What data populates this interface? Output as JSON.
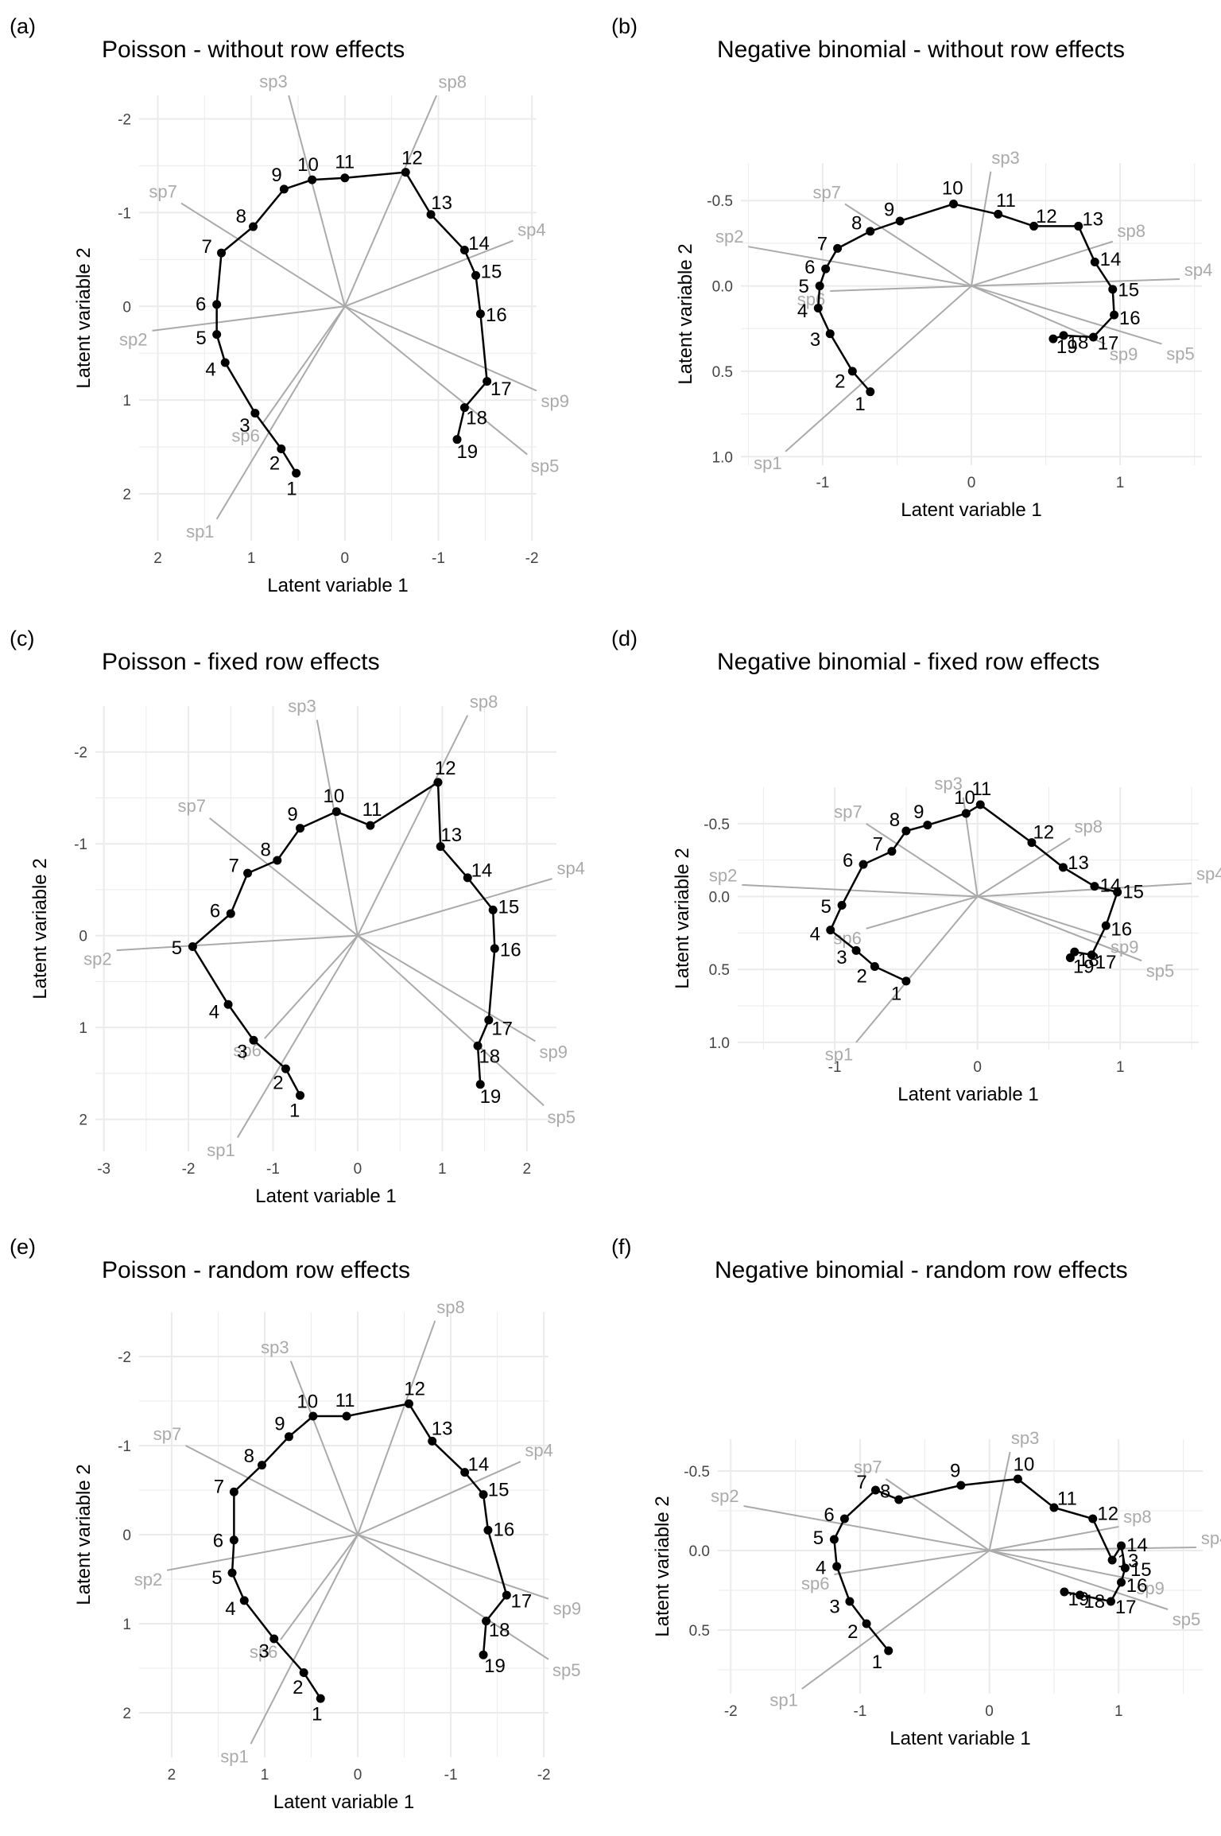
{
  "figure": {
    "label": "six-panel latent variable ordination figure"
  },
  "chart_data": [
    {
      "type": "scatter",
      "panel_label": "(a)",
      "title": "Poisson - without row effects",
      "xlabel": "Latent variable 1",
      "ylabel": "Latent variable 2",
      "xlim": [
        2.2,
        -2.05
      ],
      "ylim": [
        -2.25,
        2.5
      ],
      "x_reversed": true,
      "y_reversed": true,
      "xticks": [
        2,
        1,
        0,
        -1,
        -2
      ],
      "xtick_labels": [
        "2",
        "1",
        "0",
        "-1",
        "-2"
      ],
      "yticks": [
        -2,
        -1,
        0,
        1,
        2
      ],
      "ytick_labels": [
        "-2",
        "-1",
        "0",
        "1",
        "2"
      ],
      "grid": true,
      "sites": [
        {
          "label": "1",
          "x": 0.52,
          "y": 1.78
        },
        {
          "label": "2",
          "x": 0.68,
          "y": 1.52
        },
        {
          "label": "3",
          "x": 0.96,
          "y": 1.14
        },
        {
          "label": "4",
          "x": 1.28,
          "y": 0.6
        },
        {
          "label": "5",
          "x": 1.37,
          "y": 0.3
        },
        {
          "label": "6",
          "x": 1.37,
          "y": -0.02
        },
        {
          "label": "7",
          "x": 1.32,
          "y": -0.57
        },
        {
          "label": "8",
          "x": 0.98,
          "y": -0.85
        },
        {
          "label": "9",
          "x": 0.65,
          "y": -1.25
        },
        {
          "label": "10",
          "x": 0.35,
          "y": -1.35
        },
        {
          "label": "11",
          "x": 0.0,
          "y": -1.37
        },
        {
          "label": "12",
          "x": -0.65,
          "y": -1.43
        },
        {
          "label": "13",
          "x": -0.92,
          "y": -0.98
        },
        {
          "label": "14",
          "x": -1.28,
          "y": -0.6
        },
        {
          "label": "15",
          "x": -1.4,
          "y": -0.33
        },
        {
          "label": "16",
          "x": -1.45,
          "y": 0.08
        },
        {
          "label": "17",
          "x": -1.52,
          "y": 0.8
        },
        {
          "label": "18",
          "x": -1.28,
          "y": 1.08
        },
        {
          "label": "19",
          "x": -1.2,
          "y": 1.42
        }
      ],
      "species": [
        {
          "label": "sp1",
          "x": 1.37,
          "y": 2.27
        },
        {
          "label": "sp2",
          "x": 2.06,
          "y": 0.26
        },
        {
          "label": "sp3",
          "x": 0.6,
          "y": -2.25
        },
        {
          "label": "sp4",
          "x": -1.8,
          "y": -0.7
        },
        {
          "label": "sp5",
          "x": -1.95,
          "y": 1.58
        },
        {
          "label": "sp6",
          "x": 0.88,
          "y": 1.25
        },
        {
          "label": "sp7",
          "x": 1.75,
          "y": -1.1
        },
        {
          "label": "sp8",
          "x": -0.98,
          "y": -2.25
        },
        {
          "label": "sp9",
          "x": -2.05,
          "y": 0.9
        }
      ]
    },
    {
      "type": "scatter",
      "panel_label": "(b)",
      "title": "Negative binomial - without row effects",
      "xlabel": "Latent variable 1",
      "ylabel": "Latent variable 2",
      "xlim": [
        -1.55,
        1.55
      ],
      "ylim": [
        -0.72,
        1.05
      ],
      "x_reversed": false,
      "y_reversed": true,
      "xticks": [
        -1,
        0,
        1
      ],
      "xtick_labels": [
        "-1",
        "0",
        "1"
      ],
      "yticks": [
        -0.5,
        0.0,
        0.5,
        1.0
      ],
      "ytick_labels": [
        "-0.5",
        "0.0",
        "0.5",
        "1.0"
      ],
      "grid": true,
      "sites": [
        {
          "label": "1",
          "x": -0.68,
          "y": 0.62
        },
        {
          "label": "2",
          "x": -0.8,
          "y": 0.5
        },
        {
          "label": "3",
          "x": -0.95,
          "y": 0.28
        },
        {
          "label": "4",
          "x": -1.03,
          "y": 0.13
        },
        {
          "label": "5",
          "x": -1.02,
          "y": 0.0
        },
        {
          "label": "6",
          "x": -0.98,
          "y": -0.1
        },
        {
          "label": "7",
          "x": -0.9,
          "y": -0.22
        },
        {
          "label": "8",
          "x": -0.68,
          "y": -0.32
        },
        {
          "label": "9",
          "x": -0.48,
          "y": -0.38
        },
        {
          "label": "10",
          "x": -0.12,
          "y": -0.48
        },
        {
          "label": "11",
          "x": 0.18,
          "y": -0.42
        },
        {
          "label": "12",
          "x": 0.42,
          "y": -0.35
        },
        {
          "label": "13",
          "x": 0.72,
          "y": -0.35
        },
        {
          "label": "14",
          "x": 0.83,
          "y": -0.14
        },
        {
          "label": "15",
          "x": 0.95,
          "y": 0.02
        },
        {
          "label": "16",
          "x": 0.96,
          "y": 0.17
        },
        {
          "label": "17",
          "x": 0.82,
          "y": 0.3
        },
        {
          "label": "18",
          "x": 0.62,
          "y": 0.29
        },
        {
          "label": "19",
          "x": 0.55,
          "y": 0.31
        }
      ],
      "species": [
        {
          "label": "sp1",
          "x": -1.25,
          "y": 0.97
        },
        {
          "label": "sp2",
          "x": -1.5,
          "y": -0.23
        },
        {
          "label": "sp3",
          "x": 0.13,
          "y": -0.67
        },
        {
          "label": "sp4",
          "x": 1.4,
          "y": -0.04
        },
        {
          "label": "sp5",
          "x": 1.28,
          "y": 0.34
        },
        {
          "label": "sp6",
          "x": -0.95,
          "y": 0.03
        },
        {
          "label": "sp7",
          "x": -0.85,
          "y": -0.48
        },
        {
          "label": "sp8",
          "x": 0.95,
          "y": -0.26
        },
        {
          "label": "sp9",
          "x": 0.9,
          "y": 0.34
        }
      ]
    },
    {
      "type": "scatter",
      "panel_label": "(c)",
      "title": "Poisson - fixed row effects",
      "xlabel": "Latent variable 1",
      "ylabel": "Latent variable 2",
      "xlim": [
        -3.1,
        2.35
      ],
      "ylim": [
        -2.5,
        2.35
      ],
      "x_reversed": false,
      "y_reversed": true,
      "xticks": [
        -3,
        -2,
        -1,
        0,
        1,
        2
      ],
      "xtick_labels": [
        "-3",
        "-2",
        "-1",
        "0",
        "1",
        "2"
      ],
      "yticks": [
        -2,
        -1,
        0,
        1,
        2
      ],
      "ytick_labels": [
        "-2",
        "-1",
        "0",
        "1",
        "2"
      ],
      "grid": true,
      "sites": [
        {
          "label": "1",
          "x": -0.68,
          "y": 1.74
        },
        {
          "label": "2",
          "x": -0.85,
          "y": 1.45
        },
        {
          "label": "3",
          "x": -1.23,
          "y": 1.14
        },
        {
          "label": "4",
          "x": -1.53,
          "y": 0.75
        },
        {
          "label": "5",
          "x": -1.95,
          "y": 0.12
        },
        {
          "label": "6",
          "x": -1.5,
          "y": -0.24
        },
        {
          "label": "7",
          "x": -1.3,
          "y": -0.68
        },
        {
          "label": "8",
          "x": -0.95,
          "y": -0.82
        },
        {
          "label": "9",
          "x": -0.68,
          "y": -1.17
        },
        {
          "label": "10",
          "x": -0.25,
          "y": -1.35
        },
        {
          "label": "11",
          "x": 0.15,
          "y": -1.2
        },
        {
          "label": "12",
          "x": 0.95,
          "y": -1.67
        },
        {
          "label": "13",
          "x": 0.98,
          "y": -0.97
        },
        {
          "label": "14",
          "x": 1.3,
          "y": -0.63
        },
        {
          "label": "15",
          "x": 1.6,
          "y": -0.28
        },
        {
          "label": "16",
          "x": 1.62,
          "y": 0.14
        },
        {
          "label": "17",
          "x": 1.55,
          "y": 0.92
        },
        {
          "label": "18",
          "x": 1.42,
          "y": 1.2
        },
        {
          "label": "19",
          "x": 1.45,
          "y": 1.62
        }
      ],
      "species": [
        {
          "label": "sp1",
          "x": -1.42,
          "y": 2.2
        },
        {
          "label": "sp2",
          "x": -2.85,
          "y": 0.16
        },
        {
          "label": "sp3",
          "x": -0.48,
          "y": -2.35
        },
        {
          "label": "sp4",
          "x": 2.3,
          "y": -0.62
        },
        {
          "label": "sp5",
          "x": 2.2,
          "y": 1.85
        },
        {
          "label": "sp6",
          "x": -1.1,
          "y": 1.12
        },
        {
          "label": "sp7",
          "x": -1.75,
          "y": -1.28
        },
        {
          "label": "sp8",
          "x": 1.3,
          "y": -2.4
        },
        {
          "label": "sp9",
          "x": 2.1,
          "y": 1.15
        }
      ]
    },
    {
      "type": "scatter",
      "panel_label": "(d)",
      "title": "Negative binomial - fixed row effects",
      "xlabel": "Latent variable 1",
      "ylabel": "Latent variable 2",
      "xlim": [
        -1.68,
        1.55
      ],
      "ylim": [
        -0.75,
        1.05
      ],
      "x_reversed": false,
      "y_reversed": true,
      "xticks": [
        -1,
        0,
        1
      ],
      "xtick_labels": [
        "-1",
        "0",
        "1"
      ],
      "yticks": [
        -0.5,
        0.0,
        0.5,
        1.0
      ],
      "ytick_labels": [
        "-0.5",
        "0.0",
        "0.5",
        "1.0"
      ],
      "grid": true,
      "sites": [
        {
          "label": "1",
          "x": -0.5,
          "y": 0.58
        },
        {
          "label": "2",
          "x": -0.72,
          "y": 0.48
        },
        {
          "label": "3",
          "x": -0.85,
          "y": 0.37
        },
        {
          "label": "4",
          "x": -1.03,
          "y": 0.23
        },
        {
          "label": "5",
          "x": -0.95,
          "y": 0.06
        },
        {
          "label": "6",
          "x": -0.8,
          "y": -0.22
        },
        {
          "label": "7",
          "x": -0.6,
          "y": -0.31
        },
        {
          "label": "8",
          "x": -0.5,
          "y": -0.45
        },
        {
          "label": "9",
          "x": -0.35,
          "y": -0.49
        },
        {
          "label": "10",
          "x": -0.08,
          "y": -0.57
        },
        {
          "label": "11",
          "x": 0.02,
          "y": -0.63
        },
        {
          "label": "12",
          "x": 0.38,
          "y": -0.37
        },
        {
          "label": "13",
          "x": 0.6,
          "y": -0.2
        },
        {
          "label": "14",
          "x": 0.82,
          "y": -0.07
        },
        {
          "label": "15",
          "x": 0.98,
          "y": -0.03
        },
        {
          "label": "16",
          "x": 0.9,
          "y": 0.2
        },
        {
          "label": "17",
          "x": 0.8,
          "y": 0.4
        },
        {
          "label": "18",
          "x": 0.68,
          "y": 0.38
        },
        {
          "label": "19",
          "x": 0.65,
          "y": 0.42
        }
      ],
      "species": [
        {
          "label": "sp1",
          "x": -0.85,
          "y": 1.0
        },
        {
          "label": "sp2",
          "x": -1.65,
          "y": -0.08
        },
        {
          "label": "sp3",
          "x": -0.1,
          "y": -0.68
        },
        {
          "label": "sp4",
          "x": 1.5,
          "y": -0.09
        },
        {
          "label": "sp5",
          "x": 1.15,
          "y": 0.44
        },
        {
          "label": "sp6",
          "x": -0.78,
          "y": 0.22
        },
        {
          "label": "sp7",
          "x": -0.78,
          "y": -0.5
        },
        {
          "label": "sp8",
          "x": 0.65,
          "y": -0.4
        },
        {
          "label": "sp9",
          "x": 0.9,
          "y": 0.28
        }
      ]
    },
    {
      "type": "scatter",
      "panel_label": "(e)",
      "title": "Poisson - random row effects",
      "xlabel": "Latent variable 1",
      "ylabel": "Latent variable 2",
      "xlim": [
        2.35,
        -2.05
      ],
      "ylim": [
        -2.5,
        2.5
      ],
      "x_reversed": true,
      "y_reversed": true,
      "xticks": [
        2,
        1,
        0,
        -1,
        -2
      ],
      "xtick_labels": [
        "2",
        "1",
        "0",
        "-1",
        "-2"
      ],
      "yticks": [
        -2,
        -1,
        0,
        1,
        2
      ],
      "ytick_labels": [
        "-2",
        "-1",
        "0",
        "1",
        "2"
      ],
      "grid": true,
      "sites": [
        {
          "label": "1",
          "x": 0.4,
          "y": 1.84
        },
        {
          "label": "2",
          "x": 0.58,
          "y": 1.55
        },
        {
          "label": "3",
          "x": 0.9,
          "y": 1.17
        },
        {
          "label": "4",
          "x": 1.22,
          "y": 0.74
        },
        {
          "label": "5",
          "x": 1.35,
          "y": 0.43
        },
        {
          "label": "6",
          "x": 1.33,
          "y": 0.06
        },
        {
          "label": "7",
          "x": 1.33,
          "y": -0.48
        },
        {
          "label": "8",
          "x": 1.03,
          "y": -0.78
        },
        {
          "label": "9",
          "x": 0.74,
          "y": -1.1
        },
        {
          "label": "10",
          "x": 0.48,
          "y": -1.33
        },
        {
          "label": "11",
          "x": 0.12,
          "y": -1.33
        },
        {
          "label": "12",
          "x": -0.55,
          "y": -1.47
        },
        {
          "label": "13",
          "x": -0.8,
          "y": -1.05
        },
        {
          "label": "14",
          "x": -1.15,
          "y": -0.7
        },
        {
          "label": "15",
          "x": -1.35,
          "y": -0.45
        },
        {
          "label": "16",
          "x": -1.4,
          "y": -0.05
        },
        {
          "label": "17",
          "x": -1.6,
          "y": 0.68
        },
        {
          "label": "18",
          "x": -1.38,
          "y": 0.97
        },
        {
          "label": "19",
          "x": -1.35,
          "y": 1.35
        }
      ],
      "species": [
        {
          "label": "sp1",
          "x": 1.15,
          "y": 2.35
        },
        {
          "label": "sp2",
          "x": 2.05,
          "y": 0.4
        },
        {
          "label": "sp3",
          "x": 0.72,
          "y": -1.95
        },
        {
          "label": "sp4",
          "x": -1.75,
          "y": -0.82
        },
        {
          "label": "sp5",
          "x": -2.05,
          "y": 1.4
        },
        {
          "label": "sp6",
          "x": 0.83,
          "y": 1.18
        },
        {
          "label": "sp7",
          "x": 1.85,
          "y": -1.0
        },
        {
          "label": "sp8",
          "x": -0.83,
          "y": -2.4
        },
        {
          "label": "sp9",
          "x": -2.05,
          "y": 0.72
        }
      ]
    },
    {
      "type": "scatter",
      "panel_label": "(f)",
      "title": "Negative binomial - random row effects",
      "xlabel": "Latent variable 1",
      "ylabel": "Latent variable 2",
      "xlim": [
        -2.1,
        1.65
      ],
      "ylim": [
        -0.7,
        0.9
      ],
      "x_reversed": false,
      "y_reversed": true,
      "xticks": [
        -2,
        -1,
        0,
        1
      ],
      "xtick_labels": [
        "-2",
        "-1",
        "0",
        "1"
      ],
      "yticks": [
        -0.5,
        0.0,
        0.5
      ],
      "ytick_labels": [
        "-0.5",
        "0.0",
        "0.5"
      ],
      "grid": true,
      "sites": [
        {
          "label": "1",
          "x": -0.78,
          "y": 0.63
        },
        {
          "label": "2",
          "x": -0.95,
          "y": 0.46
        },
        {
          "label": "3",
          "x": -1.08,
          "y": 0.32
        },
        {
          "label": "4",
          "x": -1.18,
          "y": 0.1
        },
        {
          "label": "5",
          "x": -1.2,
          "y": -0.07
        },
        {
          "label": "6",
          "x": -1.12,
          "y": -0.2
        },
        {
          "label": "7",
          "x": -0.88,
          "y": -0.38
        },
        {
          "label": "8",
          "x": -0.7,
          "y": -0.32
        },
        {
          "label": "9",
          "x": -0.22,
          "y": -0.41
        },
        {
          "label": "10",
          "x": 0.22,
          "y": -0.45
        },
        {
          "label": "11",
          "x": 0.5,
          "y": -0.27
        },
        {
          "label": "12",
          "x": 0.8,
          "y": -0.2
        },
        {
          "label": "13",
          "x": 0.95,
          "y": 0.06
        },
        {
          "label": "14",
          "x": 1.02,
          "y": -0.03
        },
        {
          "label": "15",
          "x": 1.05,
          "y": 0.11
        },
        {
          "label": "16",
          "x": 1.02,
          "y": 0.2
        },
        {
          "label": "17",
          "x": 0.94,
          "y": 0.32
        },
        {
          "label": "18",
          "x": 0.7,
          "y": 0.28
        },
        {
          "label": "19",
          "x": 0.58,
          "y": 0.26
        }
      ],
      "species": [
        {
          "label": "sp1",
          "x": -1.45,
          "y": 0.87
        },
        {
          "label": "sp2",
          "x": -1.9,
          "y": -0.28
        },
        {
          "label": "sp3",
          "x": 0.16,
          "y": -0.62
        },
        {
          "label": "sp4",
          "x": 1.6,
          "y": -0.02
        },
        {
          "label": "sp5",
          "x": 1.38,
          "y": 0.37
        },
        {
          "label": "sp6",
          "x": -1.2,
          "y": 0.15
        },
        {
          "label": "sp7",
          "x": -0.8,
          "y": -0.45
        },
        {
          "label": "sp8",
          "x": 1.0,
          "y": -0.15
        },
        {
          "label": "sp9",
          "x": 1.1,
          "y": 0.18
        }
      ]
    }
  ]
}
